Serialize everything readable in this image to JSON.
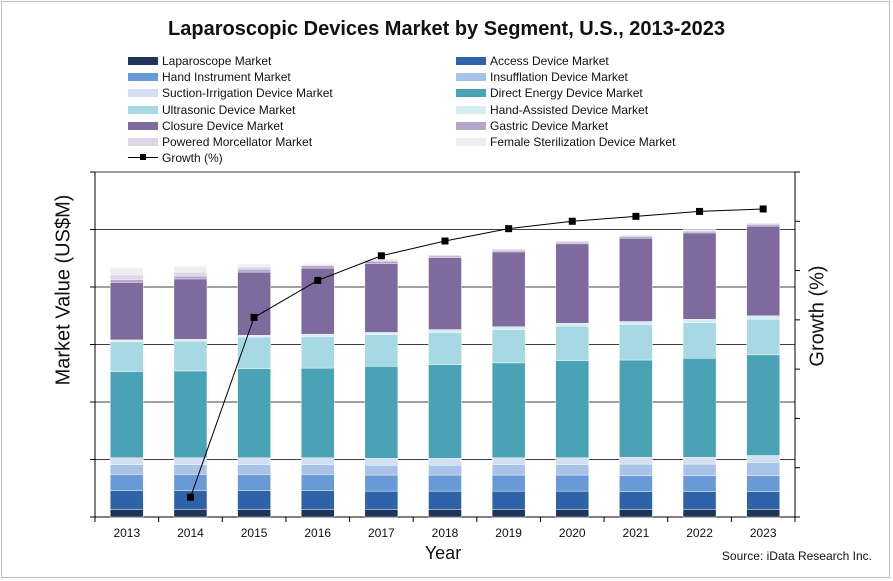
{
  "chart_data": {
    "type": "bar",
    "stacked": true,
    "title": "Laparoscopic Devices Market by Segment, U.S., 2013-2023",
    "xlabel": "Year",
    "ylabel": "Market Value (US$M)",
    "y2label": "Growth (%)",
    "source": "Source: iData Research Inc.",
    "categories": [
      "2013",
      "2014",
      "2015",
      "2016",
      "2017",
      "2018",
      "2019",
      "2020",
      "2021",
      "2022",
      "2023"
    ],
    "ylim": [
      0,
      6
    ],
    "y2lim": [
      0,
      14
    ],
    "grid": true,
    "legend_position": "top",
    "series": [
      {
        "name": "Laparoscope Market",
        "color": "#1f3558",
        "values": [
          0.13,
          0.13,
          0.13,
          0.13,
          0.13,
          0.13,
          0.13,
          0.13,
          0.13,
          0.13,
          0.13
        ]
      },
      {
        "name": "Access Device Market",
        "color": "#2f63a8",
        "values": [
          0.33,
          0.33,
          0.33,
          0.33,
          0.32,
          0.32,
          0.32,
          0.32,
          0.31,
          0.31,
          0.31
        ]
      },
      {
        "name": "Hand Instrument Market",
        "color": "#6a9ad6",
        "values": [
          0.28,
          0.28,
          0.28,
          0.28,
          0.28,
          0.28,
          0.28,
          0.28,
          0.28,
          0.28,
          0.28
        ]
      },
      {
        "name": "Insufflation Device Market",
        "color": "#a9c3e8",
        "values": [
          0.17,
          0.17,
          0.17,
          0.17,
          0.17,
          0.17,
          0.18,
          0.18,
          0.2,
          0.2,
          0.23
        ]
      },
      {
        "name": "Suction-Irrigation Device Market",
        "color": "#d2e0f1",
        "values": [
          0.12,
          0.12,
          0.12,
          0.12,
          0.12,
          0.12,
          0.12,
          0.12,
          0.12,
          0.12,
          0.12
        ]
      },
      {
        "name": "Direct Energy Device Market",
        "color": "#4aa3b4",
        "values": [
          1.5,
          1.51,
          1.55,
          1.56,
          1.6,
          1.63,
          1.65,
          1.69,
          1.69,
          1.72,
          1.75
        ]
      },
      {
        "name": "Ultrasonic Device Market",
        "color": "#a6d9e3",
        "values": [
          0.52,
          0.52,
          0.55,
          0.55,
          0.55,
          0.56,
          0.58,
          0.6,
          0.62,
          0.62,
          0.62
        ]
      },
      {
        "name": "Hand-Assisted Device Market",
        "color": "#d4eef3",
        "values": [
          0.03,
          0.03,
          0.03,
          0.04,
          0.04,
          0.05,
          0.05,
          0.05,
          0.05,
          0.06,
          0.06
        ]
      },
      {
        "name": "Closure Device Market",
        "color": "#7e6a9c",
        "values": [
          1.0,
          1.05,
          1.1,
          1.15,
          1.2,
          1.25,
          1.3,
          1.38,
          1.45,
          1.5,
          1.56
        ]
      },
      {
        "name": "Gastric Device Market",
        "color": "#b3a6cc",
        "values": [
          0.05,
          0.05,
          0.05,
          0.04,
          0.04,
          0.03,
          0.03,
          0.03,
          0.03,
          0.03,
          0.03
        ]
      },
      {
        "name": "Powered Morcellator Market",
        "color": "#ddd6e8",
        "values": [
          0.08,
          0.07,
          0.04,
          0.02,
          0.02,
          0.02,
          0.02,
          0.02,
          0.02,
          0.02,
          0.02
        ]
      },
      {
        "name": "Female Sterilization Device Market",
        "color": "#eeeeee",
        "values": [
          0.12,
          0.1,
          0.05,
          0.02,
          0.02,
          0.01,
          0.01,
          0.01,
          0.01,
          0.01,
          0.01
        ]
      }
    ],
    "line_series": {
      "name": "Growth (%)",
      "axis": "right",
      "color": "#000000",
      "x": [
        "2014",
        "2015",
        "2016",
        "2017",
        "2018",
        "2019",
        "2020",
        "2021",
        "2022",
        "2023"
      ],
      "values": [
        0.8,
        8.1,
        9.6,
        10.6,
        11.2,
        11.7,
        12.0,
        12.2,
        12.4,
        12.5
      ]
    }
  }
}
